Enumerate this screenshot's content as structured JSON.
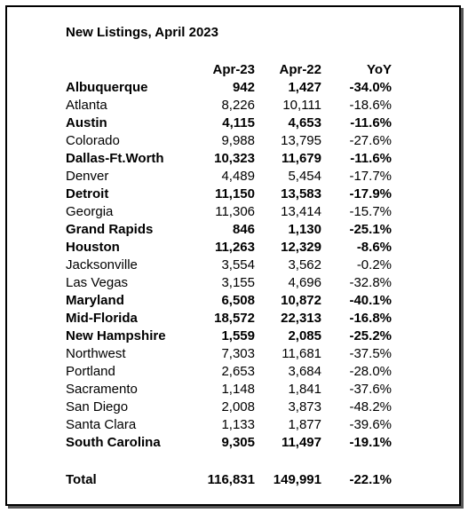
{
  "title": "New Listings, April 2023",
  "table": {
    "columns": [
      "Apr-23",
      "Apr-22",
      "YoY"
    ],
    "rows": [
      {
        "name": "Albuquerque",
        "apr23": "942",
        "apr22": "1,427",
        "yoy": "-34.0%",
        "bold": true
      },
      {
        "name": "Atlanta",
        "apr23": "8,226",
        "apr22": "10,111",
        "yoy": "-18.6%",
        "bold": false
      },
      {
        "name": "Austin",
        "apr23": "4,115",
        "apr22": "4,653",
        "yoy": "-11.6%",
        "bold": true
      },
      {
        "name": "Colorado",
        "apr23": "9,988",
        "apr22": "13,795",
        "yoy": "-27.6%",
        "bold": false
      },
      {
        "name": "Dallas-Ft.Worth",
        "apr23": "10,323",
        "apr22": "11,679",
        "yoy": "-11.6%",
        "bold": true
      },
      {
        "name": "Denver",
        "apr23": "4,489",
        "apr22": "5,454",
        "yoy": "-17.7%",
        "bold": false
      },
      {
        "name": "Detroit",
        "apr23": "11,150",
        "apr22": "13,583",
        "yoy": "-17.9%",
        "bold": true
      },
      {
        "name": "Georgia",
        "apr23": "11,306",
        "apr22": "13,414",
        "yoy": "-15.7%",
        "bold": false
      },
      {
        "name": "Grand Rapids",
        "apr23": "846",
        "apr22": "1,130",
        "yoy": "-25.1%",
        "bold": true
      },
      {
        "name": "Houston",
        "apr23": "11,263",
        "apr22": "12,329",
        "yoy": "-8.6%",
        "bold": true
      },
      {
        "name": "Jacksonville",
        "apr23": "3,554",
        "apr22": "3,562",
        "yoy": "-0.2%",
        "bold": false
      },
      {
        "name": "Las Vegas",
        "apr23": "3,155",
        "apr22": "4,696",
        "yoy": "-32.8%",
        "bold": false
      },
      {
        "name": "Maryland",
        "apr23": "6,508",
        "apr22": "10,872",
        "yoy": "-40.1%",
        "bold": true
      },
      {
        "name": "Mid-Florida",
        "apr23": "18,572",
        "apr22": "22,313",
        "yoy": "-16.8%",
        "bold": true
      },
      {
        "name": "New Hampshire",
        "apr23": "1,559",
        "apr22": "2,085",
        "yoy": "-25.2%",
        "bold": true
      },
      {
        "name": "Northwest",
        "apr23": "7,303",
        "apr22": "11,681",
        "yoy": "-37.5%",
        "bold": false
      },
      {
        "name": "Portland",
        "apr23": "2,653",
        "apr22": "3,684",
        "yoy": "-28.0%",
        "bold": false
      },
      {
        "name": "Sacramento",
        "apr23": "1,148",
        "apr22": "1,841",
        "yoy": "-37.6%",
        "bold": false
      },
      {
        "name": "San Diego",
        "apr23": "2,008",
        "apr22": "3,873",
        "yoy": "-48.2%",
        "bold": false
      },
      {
        "name": "Santa Clara",
        "apr23": "1,133",
        "apr22": "1,877",
        "yoy": "-39.6%",
        "bold": false
      },
      {
        "name": "South Carolina",
        "apr23": "9,305",
        "apr22": "11,497",
        "yoy": "-19.1%",
        "bold": true
      }
    ],
    "total": {
      "name": "Total",
      "apr23": "116,831",
      "apr22": "149,991",
      "yoy": "-22.1%",
      "bold": true
    }
  }
}
